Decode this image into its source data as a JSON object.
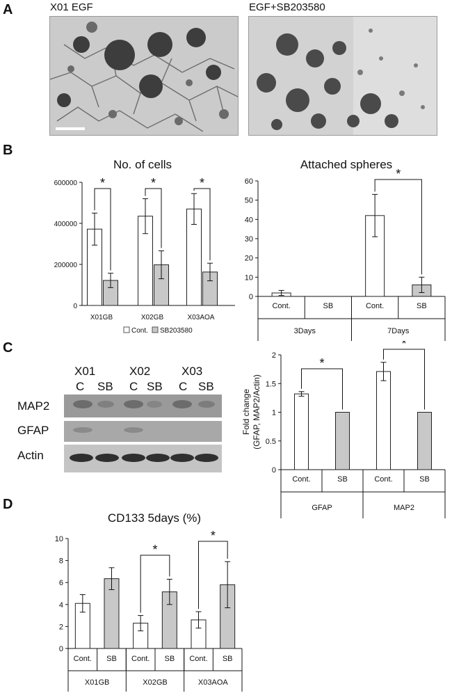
{
  "panels": {
    "a": "A",
    "b": "B",
    "c": "C",
    "d": "D"
  },
  "panel_a": {
    "left_label": "X01 EGF",
    "right_label": "EGF+SB203580"
  },
  "panel_c_blot": {
    "samples": [
      "X01",
      "X02",
      "X03"
    ],
    "lanes": [
      "C",
      "SB",
      "C",
      "SB",
      "C",
      "SB"
    ],
    "rows": [
      "MAP2",
      "GFAP",
      "Actin"
    ]
  },
  "chart_data": [
    {
      "id": "cells",
      "type": "bar",
      "title": "No. of cells",
      "categories": [
        "X01GB",
        "X02GB",
        "X03AOA"
      ],
      "series": [
        {
          "name": "Cont.",
          "values": [
            372000,
            435000,
            470000
          ],
          "errors": [
            78000,
            85000,
            75000
          ],
          "color": "#ffffff"
        },
        {
          "name": "SB203580",
          "values": [
            122000,
            198000,
            163000
          ],
          "errors": [
            35000,
            68000,
            43000
          ],
          "color": "#c8c8c8"
        }
      ],
      "ylim": [
        0,
        600000
      ],
      "yticks": [
        "0",
        "200000",
        "400000",
        "600000"
      ],
      "legend": "bottom",
      "significance": [
        "*",
        "*",
        "*"
      ]
    },
    {
      "id": "spheres",
      "type": "bar",
      "title": "Attached spheres",
      "groups": [
        "3Days",
        "7Days"
      ],
      "categories": [
        "Cont.",
        "SB",
        "Cont.",
        "SB"
      ],
      "values": [
        1.8,
        0,
        42,
        6
      ],
      "errors": [
        1.3,
        0,
        11,
        4
      ],
      "ylim": [
        0,
        60
      ],
      "yticks": [
        "0",
        "10",
        "20",
        "30",
        "40",
        "50",
        "60"
      ],
      "significance": [
        "*"
      ]
    },
    {
      "id": "fold",
      "type": "bar",
      "ylabel_line1": "Fold change",
      "ylabel_line2": "(GFAP, MAP2/Actin)",
      "groups": [
        "GFAP",
        "MAP2"
      ],
      "categories": [
        "Cont.",
        "SB",
        "Cont.",
        "SB"
      ],
      "values": [
        1.32,
        1.0,
        1.71,
        1.0
      ],
      "errors": [
        0.04,
        0,
        0.16,
        0
      ],
      "ylim": [
        0,
        2
      ],
      "yticks": [
        "0",
        "0.5",
        "1",
        "1.5",
        "2"
      ],
      "significance": [
        "*",
        "*"
      ]
    },
    {
      "id": "cd133",
      "type": "bar",
      "title": "CD133 5days (%)",
      "groups": [
        "X01GB",
        "X02GB",
        "X03AOA"
      ],
      "categories": [
        "Cont.",
        "SB",
        "Cont.",
        "SB",
        "Cont.",
        "SB"
      ],
      "values": [
        4.1,
        6.35,
        2.3,
        5.15,
        2.6,
        5.8
      ],
      "errors": [
        0.8,
        1.0,
        0.7,
        1.15,
        0.75,
        2.1
      ],
      "ylim": [
        0,
        10
      ],
      "yticks": [
        "0",
        "2",
        "4",
        "6",
        "8",
        "10"
      ],
      "significance": [
        "*",
        "*"
      ]
    }
  ]
}
